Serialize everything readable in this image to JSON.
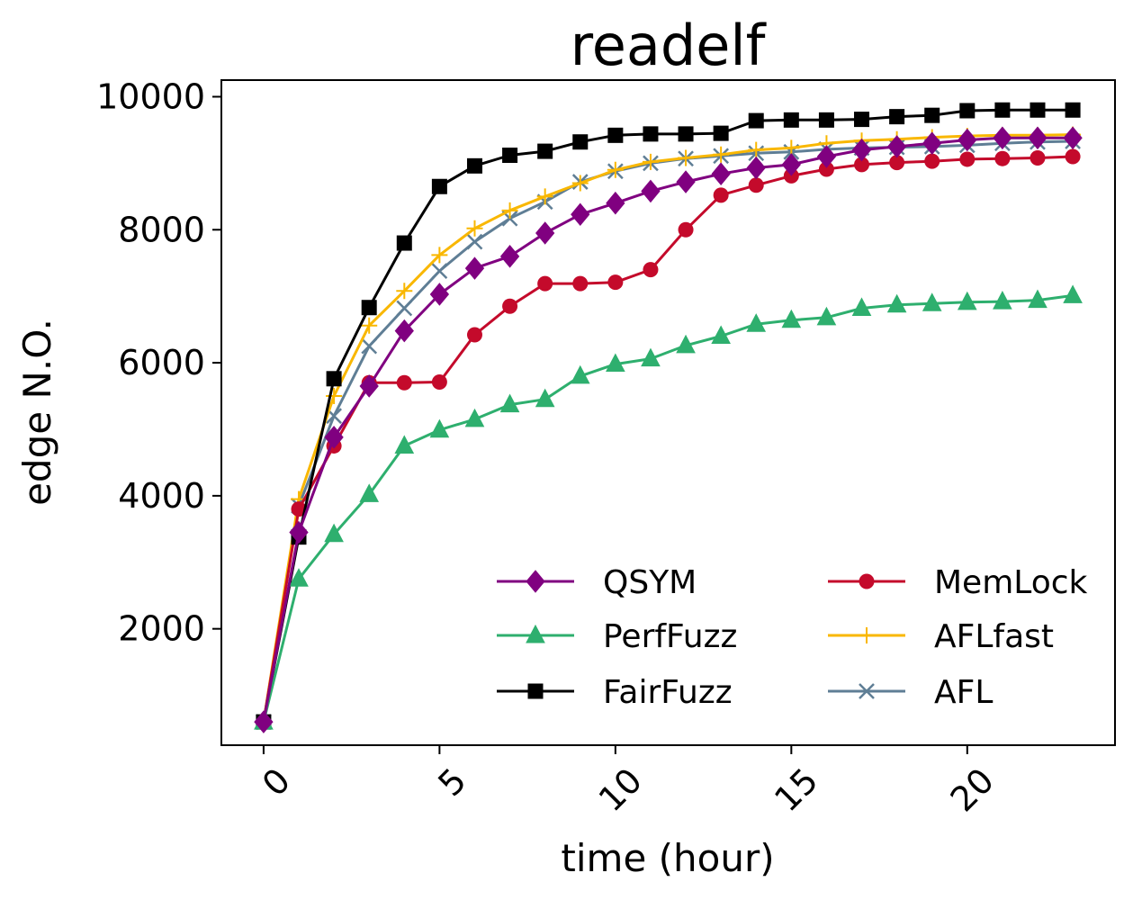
{
  "chart_data": {
    "type": "line",
    "title": "readelf",
    "xlabel": "time (hour)",
    "ylabel": "edge N.O.",
    "xlim": [
      -1.2,
      24.2
    ],
    "ylim": [
      250,
      10250
    ],
    "x_ticks": [
      0,
      5,
      10,
      15,
      20
    ],
    "y_ticks": [
      2000,
      4000,
      6000,
      8000,
      10000
    ],
    "grid": false,
    "legend_position": "lower-right",
    "x": [
      0,
      1,
      2,
      3,
      4,
      5,
      6,
      7,
      8,
      9,
      10,
      11,
      12,
      13,
      14,
      15,
      16,
      17,
      18,
      19,
      20,
      21,
      22,
      23
    ],
    "series": [
      {
        "name": "QSYM",
        "color": "#800080",
        "marker": "diamond",
        "values": [
          600,
          3450,
          4880,
          5650,
          6480,
          7030,
          7420,
          7600,
          7950,
          8230,
          8400,
          8580,
          8720,
          8840,
          8930,
          8980,
          9100,
          9200,
          9250,
          9300,
          9350,
          9380,
          9380,
          9380
        ]
      },
      {
        "name": "PerfFuzz",
        "color": "#2eaf6e",
        "marker": "triangle",
        "values": [
          600,
          2750,
          3420,
          4020,
          4750,
          4990,
          5150,
          5370,
          5450,
          5800,
          5980,
          6060,
          6260,
          6400,
          6580,
          6640,
          6680,
          6820,
          6870,
          6890,
          6910,
          6920,
          6940,
          7010
        ]
      },
      {
        "name": "FairFuzz",
        "color": "#000000",
        "marker": "square",
        "values": [
          600,
          3380,
          5760,
          6830,
          7800,
          8650,
          8960,
          9120,
          9180,
          9320,
          9420,
          9440,
          9440,
          9450,
          9640,
          9650,
          9650,
          9660,
          9700,
          9720,
          9790,
          9800,
          9800,
          9800
        ]
      },
      {
        "name": "MemLock",
        "color": "#c40a2b",
        "marker": "circle",
        "values": [
          600,
          3800,
          4750,
          5700,
          5700,
          5710,
          6420,
          6850,
          7190,
          7190,
          7210,
          7400,
          8000,
          8520,
          8670,
          8810,
          8910,
          8980,
          9010,
          9030,
          9060,
          9070,
          9080,
          9100
        ]
      },
      {
        "name": "AFLfast",
        "color": "#f9b700",
        "marker": "plus",
        "values": [
          600,
          3950,
          5500,
          6560,
          7080,
          7620,
          8020,
          8290,
          8500,
          8700,
          8900,
          9020,
          9080,
          9130,
          9200,
          9230,
          9300,
          9340,
          9360,
          9390,
          9410,
          9420,
          9420,
          9430
        ]
      },
      {
        "name": "AFL",
        "color": "#5f7e95",
        "marker": "x",
        "values": [
          600,
          3850,
          5200,
          6250,
          6820,
          7380,
          7820,
          8170,
          8420,
          8720,
          8880,
          9000,
          9070,
          9110,
          9150,
          9170,
          9210,
          9230,
          9240,
          9250,
          9270,
          9300,
          9320,
          9330
        ]
      }
    ]
  }
}
